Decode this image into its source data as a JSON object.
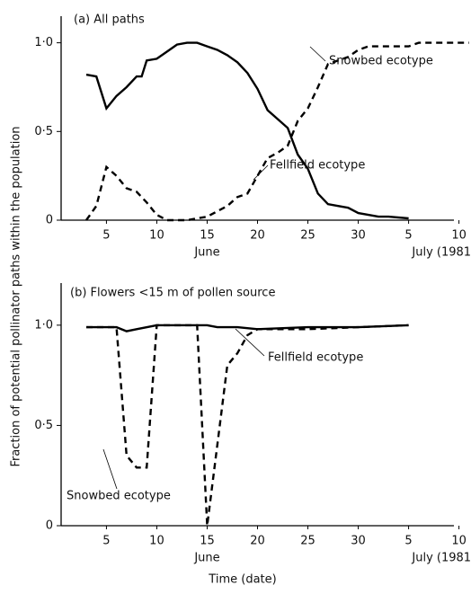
{
  "chart_data": [
    {
      "type": "line",
      "title": "(a) All paths",
      "ylabel": "Fraction of potential pollinator paths within the population",
      "xlim": [
        0.5,
        39.5
      ],
      "ylim": [
        0,
        1.15
      ],
      "xticks": [
        5,
        10,
        15,
        20,
        25,
        30,
        {
          "value": 35,
          "label": "5"
        },
        {
          "value": 40,
          "label": "10"
        }
      ],
      "yticks": [
        {
          "value": 0,
          "label": "0"
        },
        {
          "value": 0.5,
          "label": "0·5"
        },
        {
          "value": 1,
          "label": "1·0"
        }
      ],
      "month_labels": [
        "June",
        "July (1981)"
      ],
      "series": [
        {
          "name": "Fellfield ecotype",
          "color": "#000000",
          "dash": "solid",
          "x": [
            3,
            4,
            5,
            6,
            7,
            8,
            8.5,
            9,
            10,
            11,
            12,
            13,
            14,
            15,
            16,
            17,
            18,
            19,
            20,
            21,
            22,
            23,
            24,
            25,
            26,
            27,
            28,
            29,
            30,
            31,
            32,
            33,
            35
          ],
          "values": [
            0.82,
            0.81,
            0.63,
            0.7,
            0.75,
            0.81,
            0.81,
            0.9,
            0.91,
            0.95,
            0.99,
            1.0,
            1.0,
            0.98,
            0.96,
            0.93,
            0.89,
            0.83,
            0.74,
            0.62,
            0.57,
            0.52,
            0.37,
            0.29,
            0.15,
            0.09,
            0.08,
            0.07,
            0.04,
            0.03,
            0.02,
            0.02,
            0.01
          ]
        },
        {
          "name": "Snowbed ecotype",
          "color": "#000000",
          "dash": "dashed",
          "x": [
            3,
            4,
            5,
            6,
            7,
            8,
            9,
            10,
            11,
            13,
            14,
            15,
            16,
            17,
            18,
            19,
            20,
            21,
            22,
            23,
            24,
            25,
            26,
            27,
            28,
            29,
            30,
            31,
            33,
            35,
            36,
            38,
            41
          ],
          "values": [
            0,
            0.08,
            0.3,
            0.25,
            0.18,
            0.16,
            0.1,
            0.03,
            0,
            0,
            0.01,
            0.02,
            0.05,
            0.08,
            0.13,
            0.15,
            0.25,
            0.35,
            0.38,
            0.42,
            0.56,
            0.63,
            0.75,
            0.88,
            0.9,
            0.92,
            0.96,
            0.98,
            0.98,
            0.98,
            1.0,
            1.0,
            1.0
          ]
        }
      ]
    },
    {
      "type": "line",
      "title": "(b) Flowers <15 m of pollen source",
      "xlabel": "Time (date)",
      "xlim": [
        0.5,
        39.5
      ],
      "ylim": [
        0,
        1.21
      ],
      "xticks": [
        5,
        10,
        15,
        20,
        25,
        30,
        {
          "value": 35,
          "label": "5"
        },
        {
          "value": 40,
          "label": "10"
        }
      ],
      "yticks": [
        {
          "value": 0,
          "label": "0"
        },
        {
          "value": 0.5,
          "label": "0·5"
        },
        {
          "value": 1,
          "label": "1·0"
        }
      ],
      "month_labels": [
        "June",
        "July (1981)"
      ],
      "series": [
        {
          "name": "Fellfield ecotype",
          "color": "#000000",
          "dash": "solid",
          "x": [
            3,
            5,
            6,
            7,
            8,
            10,
            15,
            16,
            17,
            18,
            20,
            25,
            30,
            35
          ],
          "values": [
            0.99,
            0.99,
            0.99,
            0.97,
            0.98,
            1.0,
            1.0,
            0.99,
            0.99,
            0.99,
            0.98,
            0.99,
            0.99,
            1.0
          ]
        },
        {
          "name": "Snowbed ecotype",
          "color": "#000000",
          "dash": "dashed",
          "x": [
            3,
            6,
            7,
            8,
            9,
            10,
            14,
            15,
            17,
            18,
            19,
            20,
            25,
            30,
            35
          ],
          "values": [
            0.99,
            0.99,
            0.35,
            0.29,
            0.29,
            1.0,
            1.0,
            0,
            0.8,
            0.86,
            0.95,
            0.98,
            0.98,
            0.99,
            1.0
          ]
        }
      ]
    }
  ]
}
